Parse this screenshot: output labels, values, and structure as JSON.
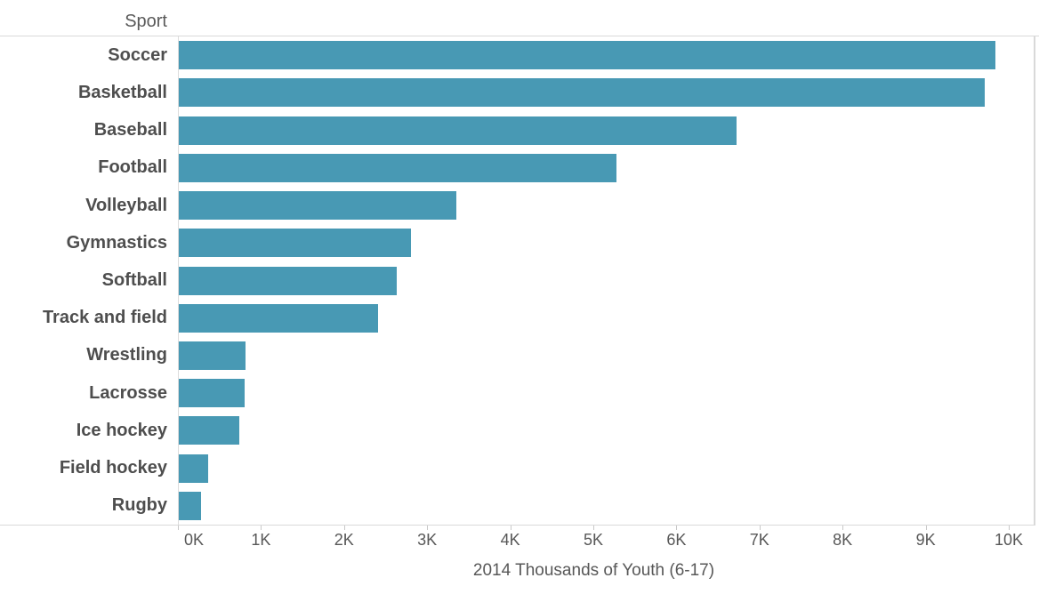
{
  "header": {
    "label": "Sport"
  },
  "x_axis": {
    "title": "2014 Thousands of Youth (6-17)",
    "tick_labels": [
      "0K",
      "1K",
      "2K",
      "3K",
      "4K",
      "5K",
      "6K",
      "7K",
      "8K",
      "9K",
      "10K"
    ]
  },
  "colors": {
    "bar": "#4899b4",
    "grid_line": "#d9d9d9",
    "tick_mark": "#c8c8c8",
    "category_text": "#4e4e4e",
    "axis_text": "#585858"
  },
  "chart_data": {
    "type": "bar",
    "orientation": "horizontal",
    "title": "Sport",
    "xlabel": "2014 Thousands of Youth (6-17)",
    "ylabel": "Sport",
    "xlim": [
      0,
      10320
    ],
    "x_tick_step": 1000,
    "grid": "off",
    "legend": "none",
    "units": "thousands of youth aged 6-17, year 2014",
    "categories": [
      "Soccer",
      "Basketball",
      "Baseball",
      "Football",
      "Volleyball",
      "Gymnastics",
      "Softball",
      "Track and field",
      "Wrestling",
      "Lacrosse",
      "Ice hockey",
      "Field hockey",
      "Rugby"
    ],
    "values": [
      9840,
      9710,
      6720,
      5280,
      3350,
      2800,
      2630,
      2410,
      810,
      800,
      740,
      360,
      280
    ]
  }
}
